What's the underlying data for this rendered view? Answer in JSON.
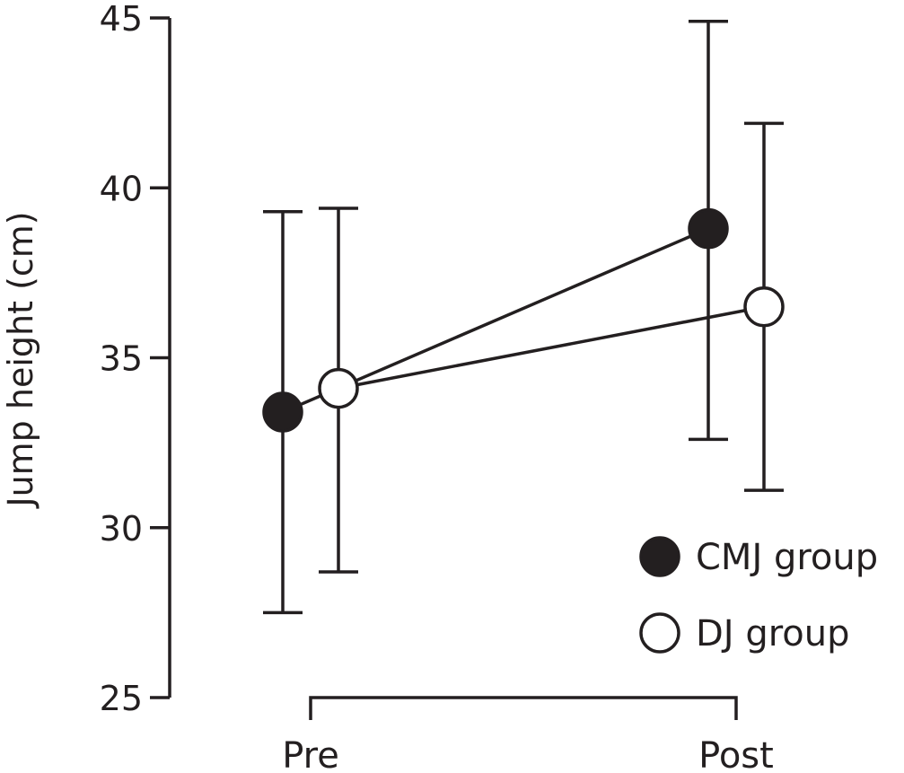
{
  "chart_data": {
    "type": "scatter",
    "title": "",
    "xlabel": "",
    "ylabel": "Jump height (cm)",
    "ylim": [
      25,
      45
    ],
    "yticks": [
      25,
      30,
      35,
      40,
      45
    ],
    "categories": [
      "Pre",
      "Post"
    ],
    "grid": false,
    "legend_position": "bottom-right",
    "series": [
      {
        "name": "CMJ group",
        "marker": "filled-circle",
        "color": "#231f20",
        "values": [
          33.4,
          38.8
        ],
        "error_low": [
          27.5,
          32.6
        ],
        "error_high": [
          39.3,
          44.9
        ]
      },
      {
        "name": "DJ group",
        "marker": "open-circle",
        "color": "#231f20",
        "values": [
          34.1,
          36.5
        ],
        "error_low": [
          28.7,
          31.1
        ],
        "error_high": [
          39.4,
          41.9
        ]
      }
    ]
  }
}
